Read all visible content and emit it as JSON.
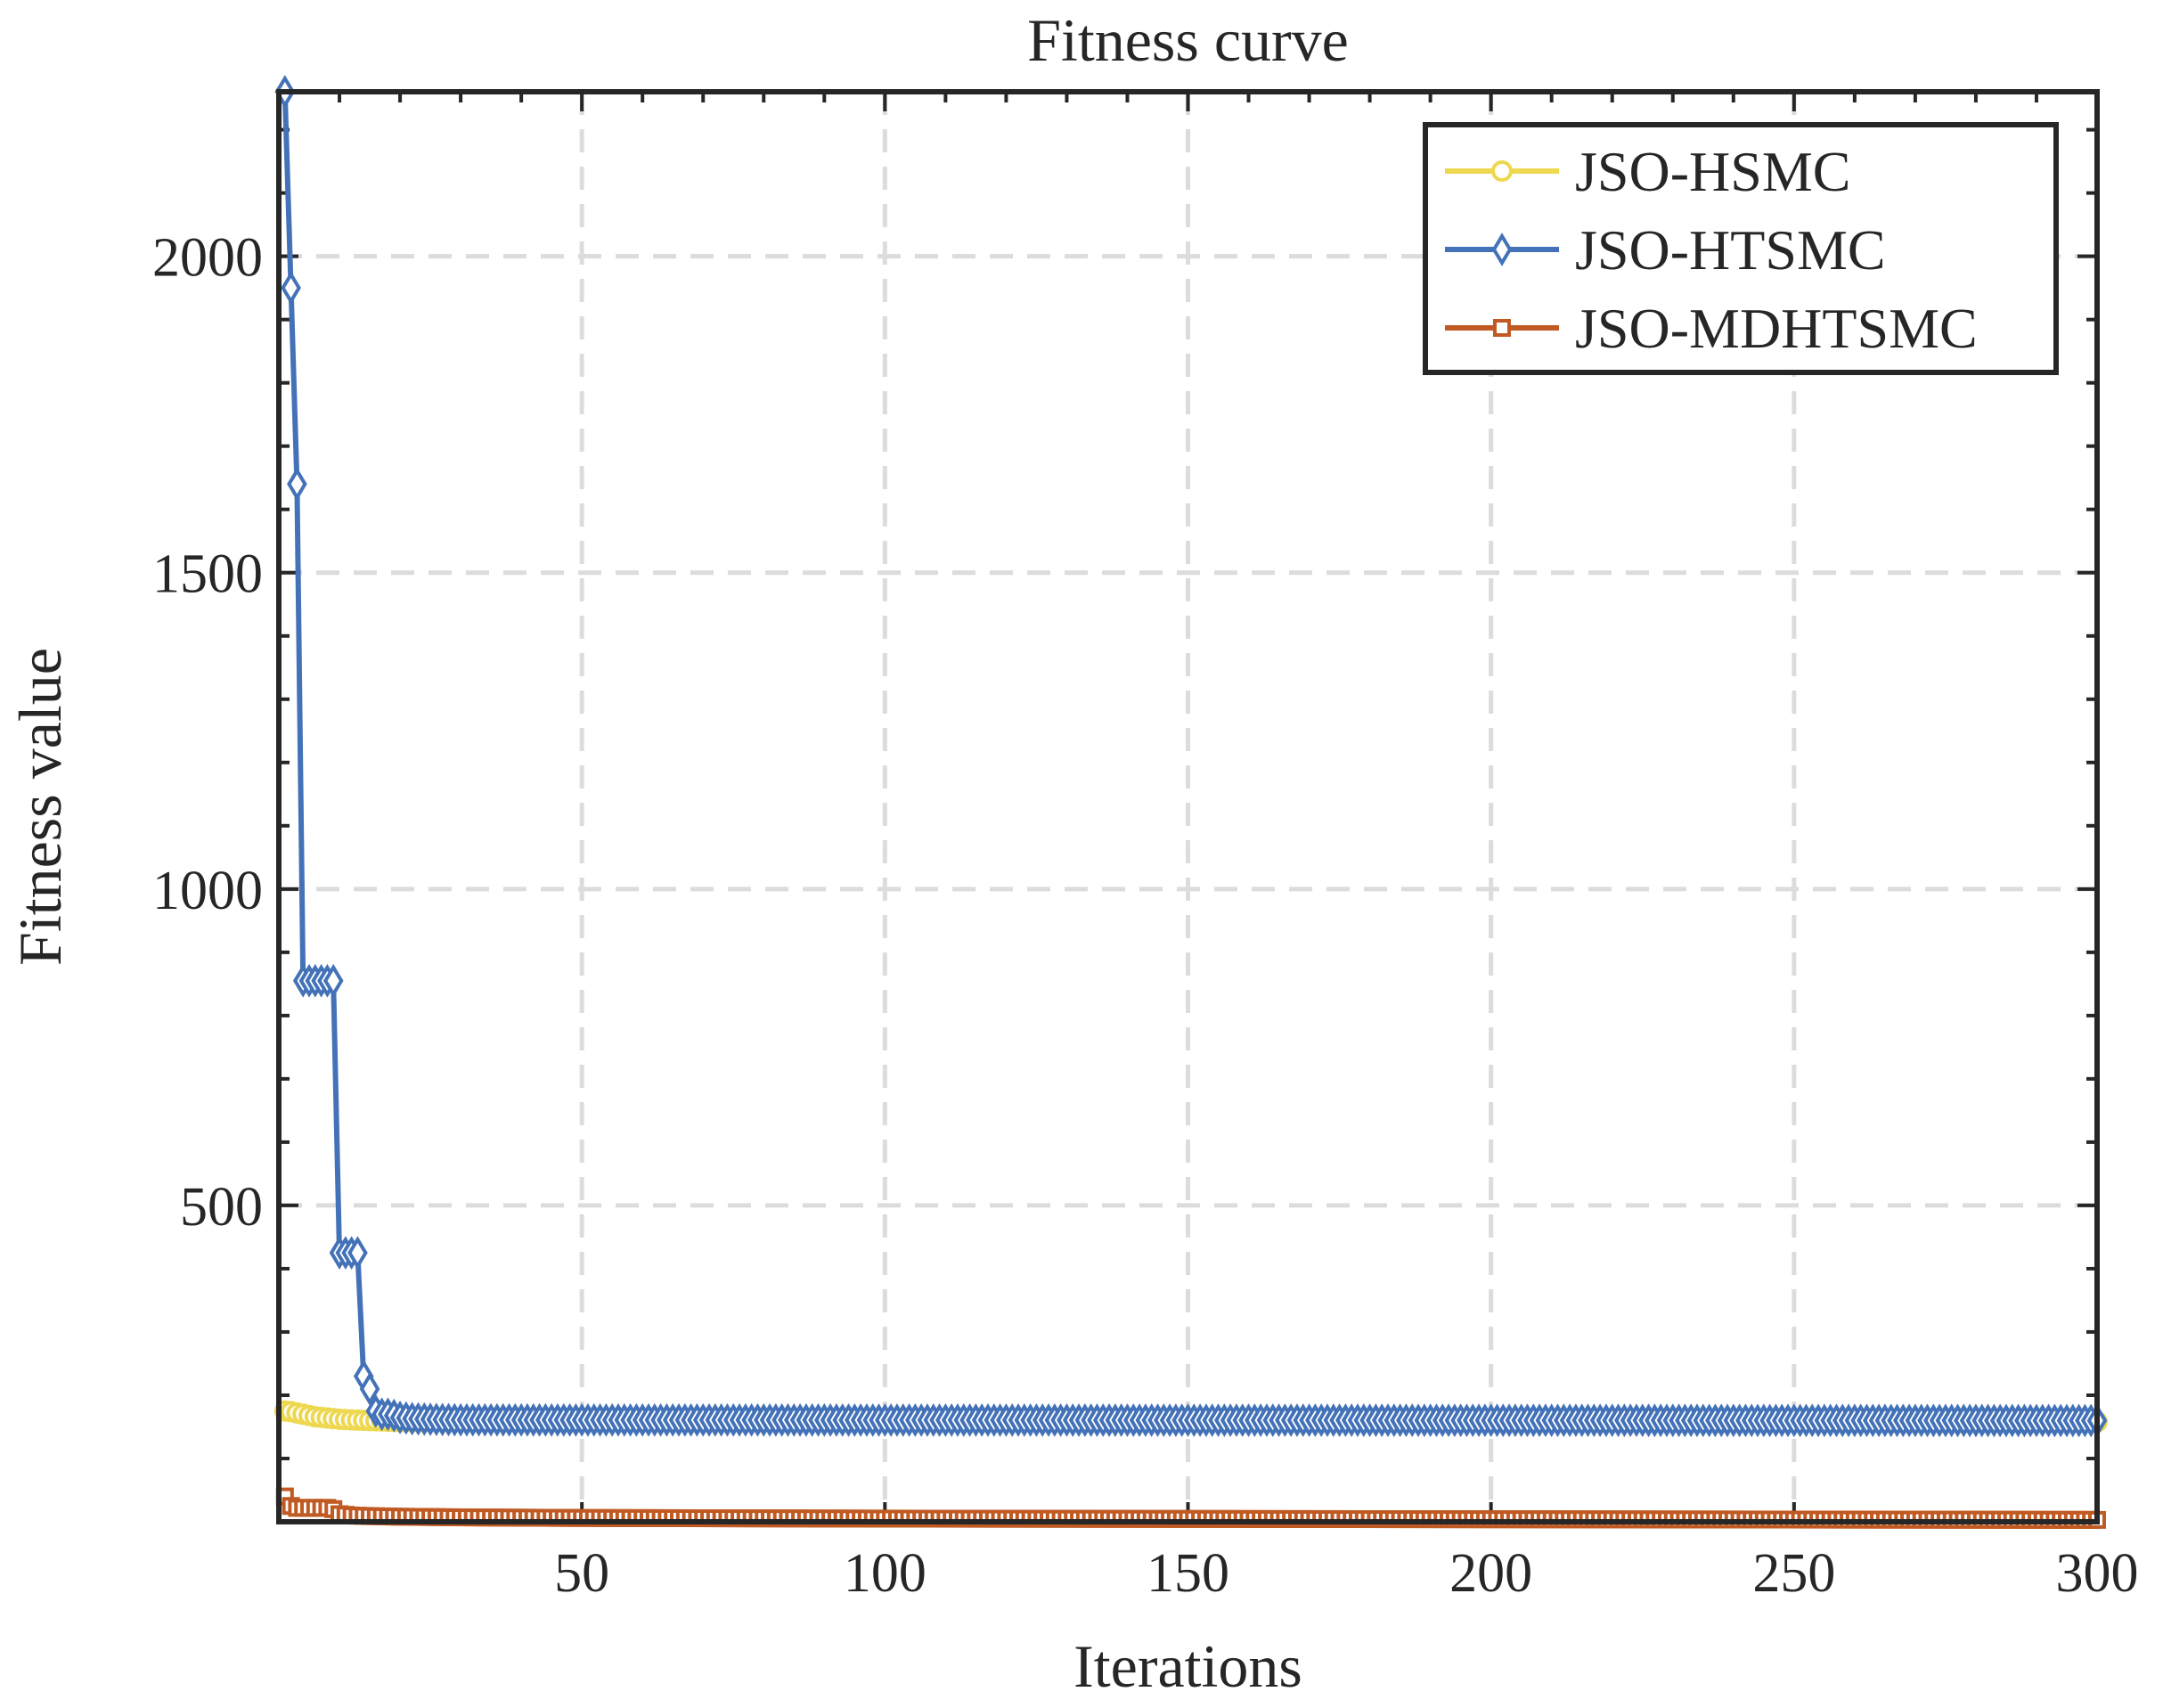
{
  "chart_data": {
    "type": "line",
    "title": "Fitness curve",
    "xlabel": "Iterations",
    "ylabel": "Fitness value",
    "xlim": [
      0,
      300
    ],
    "ylim": [
      0,
      2260
    ],
    "xticks": [
      50,
      100,
      150,
      200,
      250,
      300
    ],
    "yticks": [
      500,
      1000,
      1500,
      2000
    ],
    "grid": true,
    "legend_position": "top-right",
    "series": [
      {
        "name": "JSO-HSMC",
        "color": "#EDD84F",
        "marker": "circle",
        "points": [
          [
            1,
            175
          ],
          [
            2,
            174
          ],
          [
            3,
            172
          ],
          [
            4,
            170
          ],
          [
            5,
            168
          ],
          [
            6,
            166
          ],
          [
            7,
            165
          ],
          [
            8,
            164
          ],
          [
            9,
            163
          ],
          [
            10,
            162
          ],
          [
            12,
            161
          ],
          [
            15,
            160
          ],
          [
            18,
            159
          ],
          [
            20,
            158
          ],
          [
            300,
            158
          ]
        ]
      },
      {
        "name": "JSO-HTSMC",
        "color": "#4472B8",
        "marker": "diamond",
        "points": [
          [
            1,
            2260
          ],
          [
            3,
            1640
          ],
          [
            4,
            855
          ],
          [
            5,
            855
          ],
          [
            6,
            855
          ],
          [
            7,
            855
          ],
          [
            8,
            855
          ],
          [
            9,
            855
          ],
          [
            10,
            425
          ],
          [
            11,
            425
          ],
          [
            12,
            425
          ],
          [
            13,
            425
          ],
          [
            14,
            230
          ],
          [
            15,
            210
          ],
          [
            16,
            175
          ],
          [
            17,
            170
          ],
          [
            18,
            170
          ],
          [
            19,
            168
          ],
          [
            20,
            165
          ],
          [
            22,
            163
          ],
          [
            25,
            162
          ],
          [
            30,
            161
          ],
          [
            300,
            160
          ]
        ]
      },
      {
        "name": "JSO-MDHTSMC",
        "color": "#C05A22",
        "marker": "square",
        "points": [
          [
            1,
            40
          ],
          [
            2,
            25
          ],
          [
            3,
            22
          ],
          [
            4,
            22
          ],
          [
            5,
            22
          ],
          [
            6,
            22
          ],
          [
            7,
            22
          ],
          [
            8,
            22
          ],
          [
            9,
            20
          ],
          [
            10,
            12
          ],
          [
            12,
            10
          ],
          [
            15,
            9
          ],
          [
            20,
            8
          ],
          [
            30,
            7
          ],
          [
            50,
            6
          ],
          [
            100,
            5
          ],
          [
            200,
            4
          ],
          [
            300,
            3
          ]
        ]
      }
    ]
  }
}
